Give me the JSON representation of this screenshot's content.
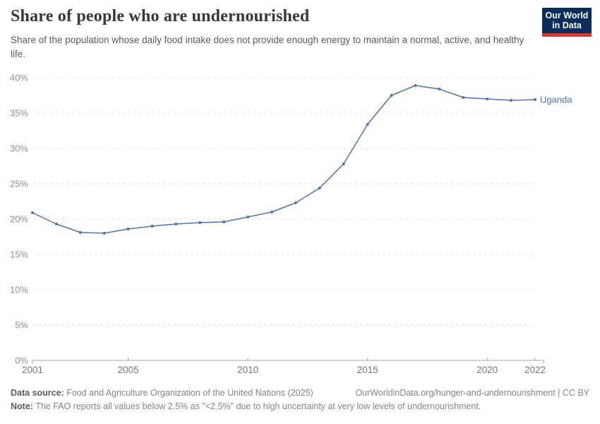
{
  "header": {
    "title": "Share of people who are undernourished",
    "subtitle": "Share of the population whose daily food intake does not provide enough energy to maintain a normal, active, and healthy life."
  },
  "logo": {
    "line1": "Our World",
    "line2": "in Data",
    "bg_color": "#0a2d5e",
    "accent_color": "#d93a2b"
  },
  "chart_data": {
    "type": "line",
    "title": "Share of people who are undernourished",
    "x": [
      2001,
      2002,
      2003,
      2004,
      2005,
      2006,
      2007,
      2008,
      2009,
      2010,
      2011,
      2012,
      2013,
      2014,
      2015,
      2016,
      2017,
      2018,
      2019,
      2020,
      2021,
      2022
    ],
    "series": [
      {
        "name": "Uganda",
        "color": "#4e73ad",
        "values": [
          20.9,
          19.3,
          18.1,
          18.0,
          18.6,
          19.0,
          19.3,
          19.5,
          19.6,
          20.3,
          21.0,
          22.3,
          24.4,
          27.8,
          33.4,
          37.5,
          38.9,
          38.4,
          37.2,
          37.0,
          36.8,
          36.9
        ]
      }
    ],
    "xlim": [
      2001,
      2022
    ],
    "ylim": [
      0,
      40
    ],
    "x_ticks": [
      2001,
      2005,
      2010,
      2015,
      2020,
      2022
    ],
    "y_tick_step": 5,
    "y_tick_suffix": "%",
    "grid": "horizontal-dashed",
    "legend_position": "end-of-line-label",
    "colors": {
      "gridline": "#dddddd",
      "axis_line": "#a6a6a6",
      "y_tick_label": "#8f8f8f",
      "x_tick_label": "#757575"
    }
  },
  "footer": {
    "data_source_label": "Data source:",
    "data_source_text": " Food and Agriculture Organization of the United Nations (2025)",
    "rights": "OurWorldinData.org/hunger-and-undernourishment | CC BY",
    "note_label": "Note:",
    "note_text": " The FAO reports all values below 2.5% as \"<2.5%\" due to high uncertainty at very low levels of undernourishment."
  }
}
